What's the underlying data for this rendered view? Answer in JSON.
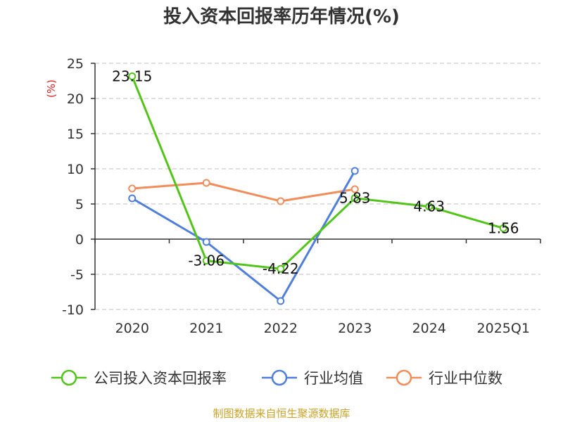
{
  "chart_data": {
    "type": "line",
    "title": "投入资本回报率历年情况(%)",
    "ylabel": "(%)",
    "categories": [
      "2020",
      "2021",
      "2022",
      "2023",
      "2024",
      "2025Q1"
    ],
    "ylim": [
      -10,
      25
    ],
    "yticks": [
      -10,
      -5,
      0,
      5,
      10,
      15,
      20,
      25
    ],
    "grid": true,
    "legend_position": "bottom",
    "series": [
      {
        "name": "公司投入资本回报率",
        "color": "#52c41a",
        "values": [
          23.15,
          -3.06,
          -4.22,
          5.83,
          4.63,
          1.56
        ],
        "labels": [
          "23.15",
          "-3.06",
          "-4.22",
          "5.83",
          "4.63",
          "1.56"
        ]
      },
      {
        "name": "行业均值",
        "color": "#4f7fdb",
        "values": [
          5.8,
          -0.4,
          -8.8,
          9.7,
          null,
          null
        ]
      },
      {
        "name": "行业中位数",
        "color": "#f28c5a",
        "values": [
          7.2,
          8.0,
          5.4,
          7.1,
          null,
          null
        ]
      }
    ]
  },
  "source": "制图数据来自恒生聚源数据库"
}
